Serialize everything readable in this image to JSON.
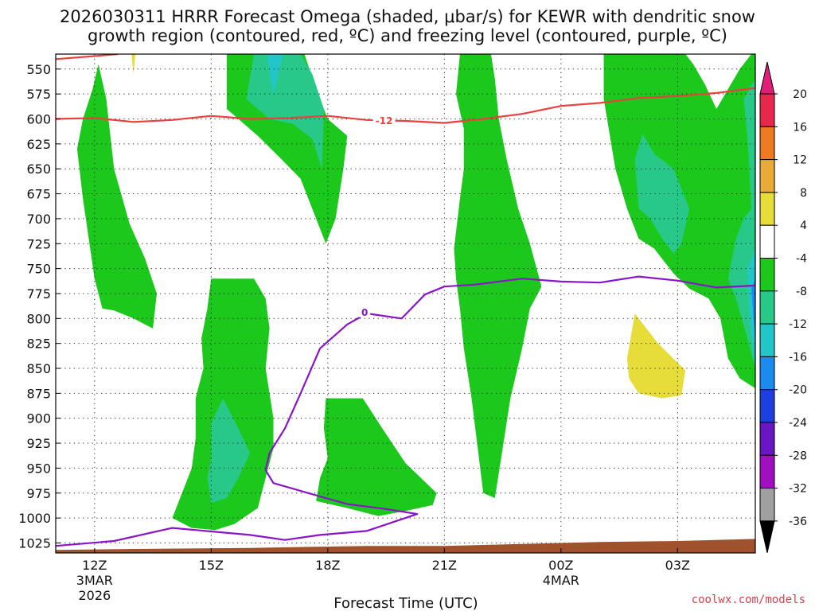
{
  "chart_data": {
    "type": "contour",
    "title_line1": "2026030311 HRRR Forecast Omega (shaded, μbar/s) for KEWR with dendritic snow",
    "title_line2": "growth region (contoured, red, ºC) and freezing level (contoured, purple, ºC)",
    "xlabel": "Forecast Time (UTC)",
    "ylabel": "",
    "credit": "coolwx.com/models",
    "x_range_hours": [
      11,
      29
    ],
    "y_range_hpa": [
      535,
      1035
    ],
    "y_ticks": [
      550,
      575,
      600,
      625,
      650,
      675,
      700,
      725,
      750,
      775,
      800,
      825,
      850,
      875,
      900,
      925,
      950,
      975,
      1000,
      1025
    ],
    "x_ticks": [
      {
        "hour": 12,
        "label": "12Z",
        "sub1": "3MAR",
        "sub2": "2026"
      },
      {
        "hour": 15,
        "label": "15Z",
        "sub1": "",
        "sub2": ""
      },
      {
        "hour": 18,
        "label": "18Z",
        "sub1": "",
        "sub2": ""
      },
      {
        "hour": 21,
        "label": "21Z",
        "sub1": "",
        "sub2": ""
      },
      {
        "hour": 24,
        "label": "00Z",
        "sub1": "4MAR",
        "sub2": ""
      },
      {
        "hour": 27,
        "label": "03Z",
        "sub1": "",
        "sub2": ""
      }
    ],
    "colorbar": {
      "levels": [
        "20",
        "16",
        "12",
        "8",
        "4",
        "-4",
        "-8",
        "-12",
        "-16",
        "-20",
        "-24",
        "-28",
        "-32",
        "-36"
      ],
      "colors": [
        "#e8284a",
        "#ee7a22",
        "#e8aa38",
        "#e6dc3a",
        "#ffffff",
        "#1bc81b",
        "#27c888",
        "#22c6c8",
        "#1a8cf0",
        "#1d3fe0",
        "#6a16c4",
        "#a010c0",
        "#a0a0a0"
      ],
      "top_color": "#e01e78",
      "bottom_color": "#000000"
    },
    "contour_lines": [
      {
        "name": "dgz-minus12",
        "label": "-12",
        "color": "#ea4040",
        "points": [
          [
            11,
            600
          ],
          [
            12,
            599
          ],
          [
            13,
            603
          ],
          [
            14,
            601
          ],
          [
            15,
            597
          ],
          [
            16,
            600
          ],
          [
            17,
            599
          ],
          [
            18,
            597
          ],
          [
            19,
            601
          ],
          [
            20,
            602
          ],
          [
            21,
            604
          ],
          [
            22,
            600
          ],
          [
            23,
            595
          ],
          [
            24,
            587
          ],
          [
            25,
            584
          ],
          [
            26,
            579
          ],
          [
            27,
            577
          ],
          [
            28,
            574
          ],
          [
            29,
            569
          ]
        ]
      },
      {
        "name": "dgz-minus12-topleft",
        "label": "",
        "color": "#ea4040",
        "points": [
          [
            11,
            540
          ],
          [
            12,
            537
          ],
          [
            12.6,
            535
          ]
        ]
      },
      {
        "name": "freezing-level-0",
        "label": "0",
        "color": "#8a14c8",
        "points": [
          [
            11,
            1028
          ],
          [
            12.5,
            1023
          ],
          [
            14,
            1010
          ],
          [
            16,
            1017
          ],
          [
            16.9,
            1022
          ],
          [
            17.8,
            1017
          ],
          [
            19,
            1013
          ],
          [
            20.3,
            996
          ],
          [
            19.5,
            991
          ],
          [
            18.5,
            986
          ],
          [
            17.5,
            975
          ],
          [
            16.6,
            965
          ],
          [
            16.4,
            952
          ],
          [
            16.5,
            935
          ],
          [
            16.9,
            910
          ],
          [
            17.3,
            875
          ],
          [
            17.8,
            830
          ],
          [
            18.5,
            806
          ],
          [
            19.0,
            795
          ],
          [
            19.9,
            800
          ],
          [
            20.5,
            776
          ],
          [
            21,
            768
          ],
          [
            21.8,
            766
          ],
          [
            23,
            760
          ],
          [
            24,
            763
          ],
          [
            25,
            764
          ],
          [
            26,
            758
          ],
          [
            27,
            762
          ],
          [
            28,
            769
          ],
          [
            29,
            767
          ]
        ]
      }
    ],
    "shaded_regions": [
      {
        "name": "omega-yellow-top",
        "value_range": "4 to 8",
        "color": "#e6dc3a",
        "points": [
          [
            12.95,
            535
          ],
          [
            13.05,
            535
          ],
          [
            13.0,
            555
          ]
        ]
      },
      {
        "name": "omega-green-left",
        "value_range": "-4 to -8",
        "color": "#1bc81b",
        "points": [
          [
            11.95,
            570
          ],
          [
            12.1,
            545
          ],
          [
            12.3,
            580
          ],
          [
            12.5,
            650
          ],
          [
            12.9,
            705
          ],
          [
            13.3,
            740
          ],
          [
            13.6,
            775
          ],
          [
            13.5,
            810
          ],
          [
            13.0,
            800
          ],
          [
            12.5,
            792
          ],
          [
            12.2,
            790
          ],
          [
            12.0,
            760
          ],
          [
            11.7,
            680
          ],
          [
            11.55,
            630
          ],
          [
            11.7,
            600
          ]
        ]
      },
      {
        "name": "omega-green-15z-upper",
        "value_range": "-4 to -8",
        "color": "#1bc81b",
        "points": [
          [
            15.4,
            535
          ],
          [
            16.3,
            535
          ],
          [
            16.8,
            553
          ],
          [
            17.1,
            535
          ],
          [
            17.4,
            535
          ],
          [
            17.7,
            570
          ],
          [
            18.0,
            600
          ],
          [
            18.5,
            617
          ],
          [
            18.4,
            650
          ],
          [
            18.2,
            700
          ],
          [
            17.95,
            725
          ],
          [
            17.6,
            690
          ],
          [
            17.3,
            660
          ],
          [
            16.8,
            640
          ],
          [
            16.2,
            617
          ],
          [
            15.7,
            600
          ],
          [
            15.4,
            590
          ]
        ]
      },
      {
        "name": "omega-teal-15z-upper",
        "value_range": "-8 to -12",
        "color": "#27c888",
        "points": [
          [
            15.9,
            580
          ],
          [
            16.1,
            535
          ],
          [
            17.3,
            535
          ],
          [
            17.6,
            555
          ],
          [
            17.9,
            590
          ],
          [
            17.85,
            650
          ],
          [
            17.6,
            620
          ],
          [
            17.1,
            605
          ],
          [
            16.5,
            600
          ]
        ]
      },
      {
        "name": "omega-cyan-15z-upper",
        "value_range": "-12 to -16",
        "color": "#22c6c8",
        "points": [
          [
            16.45,
            535
          ],
          [
            16.85,
            535
          ],
          [
            16.6,
            575
          ],
          [
            16.5,
            555
          ]
        ]
      },
      {
        "name": "omega-green-21z",
        "value_range": "-4 to -8",
        "color": "#1bc81b",
        "points": [
          [
            21.4,
            535
          ],
          [
            22.2,
            535
          ],
          [
            22.3,
            560
          ],
          [
            22.4,
            600
          ],
          [
            22.6,
            640
          ],
          [
            22.9,
            690
          ],
          [
            23.2,
            725
          ],
          [
            23.5,
            768
          ],
          [
            23.2,
            790
          ],
          [
            23.0,
            830
          ],
          [
            22.7,
            880
          ],
          [
            22.5,
            930
          ],
          [
            22.3,
            980
          ],
          [
            22.0,
            975
          ],
          [
            21.7,
            880
          ],
          [
            21.5,
            830
          ],
          [
            21.4,
            790
          ],
          [
            21.3,
            760
          ],
          [
            21.25,
            730
          ],
          [
            21.4,
            680
          ],
          [
            21.5,
            650
          ],
          [
            21.5,
            610
          ],
          [
            21.3,
            575
          ]
        ]
      },
      {
        "name": "omega-green-right",
        "value_range": "-4 to -8",
        "color": "#1bc81b",
        "points": [
          [
            25.1,
            535
          ],
          [
            27.2,
            535
          ],
          [
            27.4,
            545
          ],
          [
            27.7,
            565
          ],
          [
            28.0,
            590
          ],
          [
            28.3,
            570
          ],
          [
            28.6,
            550
          ],
          [
            28.9,
            535
          ],
          [
            29.0,
            535
          ],
          [
            29.0,
            870
          ],
          [
            28.6,
            860
          ],
          [
            28.3,
            840
          ],
          [
            28.1,
            800
          ],
          [
            27.8,
            780
          ],
          [
            27.3,
            770
          ],
          [
            26.9,
            755
          ],
          [
            26.4,
            730
          ],
          [
            26.0,
            720
          ],
          [
            25.7,
            690
          ],
          [
            25.4,
            650
          ],
          [
            25.1,
            580
          ]
        ]
      },
      {
        "name": "omega-teal-right-mid",
        "value_range": "-8 to -12",
        "color": "#27c888",
        "points": [
          [
            25.9,
            640
          ],
          [
            26.1,
            615
          ],
          [
            26.4,
            635
          ],
          [
            26.9,
            650
          ],
          [
            27.3,
            690
          ],
          [
            27.1,
            725
          ],
          [
            26.9,
            735
          ],
          [
            26.6,
            720
          ],
          [
            26.3,
            700
          ],
          [
            26.0,
            690
          ]
        ]
      },
      {
        "name": "omega-teal-right-edge",
        "value_range": "-8 to -12",
        "color": "#27c888",
        "points": [
          [
            28.7,
            580
          ],
          [
            29.0,
            560
          ],
          [
            29.0,
            850
          ],
          [
            28.8,
            820
          ],
          [
            28.5,
            780
          ],
          [
            28.3,
            760
          ],
          [
            28.5,
            720
          ],
          [
            28.7,
            700
          ],
          [
            28.9,
            690
          ],
          [
            28.8,
            620
          ]
        ]
      },
      {
        "name": "omega-cyan-right-edge",
        "value_range": "-12 to -16",
        "color": "#22c6c8",
        "points": [
          [
            28.8,
            750
          ],
          [
            29.0,
            730
          ],
          [
            29.0,
            850
          ],
          [
            28.85,
            800
          ]
        ]
      },
      {
        "name": "omega-blue-right-edge",
        "value_range": "-16 to -20",
        "color": "#1a8cf0",
        "points": [
          [
            28.9,
            770
          ],
          [
            29.0,
            760
          ],
          [
            29.0,
            820
          ],
          [
            28.95,
            800
          ]
        ]
      },
      {
        "name": "omega-green-15z-lower",
        "value_range": "-4 to -8",
        "color": "#1bc81b",
        "points": [
          [
            15.0,
            760
          ],
          [
            16.1,
            760
          ],
          [
            16.4,
            780
          ],
          [
            16.5,
            810
          ],
          [
            16.4,
            850
          ],
          [
            16.6,
            900
          ],
          [
            16.6,
            930
          ],
          [
            16.4,
            960
          ],
          [
            16.2,
            990
          ],
          [
            15.6,
            1006
          ],
          [
            15.1,
            1012
          ],
          [
            14.5,
            1010
          ],
          [
            14.0,
            1000
          ],
          [
            14.2,
            980
          ],
          [
            14.5,
            950
          ],
          [
            14.6,
            920
          ],
          [
            14.6,
            880
          ],
          [
            14.8,
            850
          ],
          [
            14.75,
            820
          ],
          [
            14.9,
            790
          ]
        ]
      },
      {
        "name": "omega-teal-15z-lower",
        "value_range": "-8 to -12",
        "color": "#27c888",
        "points": [
          [
            15.0,
            905
          ],
          [
            15.3,
            880
          ],
          [
            15.7,
            910
          ],
          [
            16.0,
            935
          ],
          [
            15.7,
            960
          ],
          [
            15.4,
            980
          ],
          [
            15.0,
            985
          ],
          [
            14.9,
            960
          ],
          [
            15.0,
            940
          ]
        ]
      },
      {
        "name": "omega-green-18z-lower",
        "value_range": "-4 to -8",
        "color": "#1bc81b",
        "points": [
          [
            17.95,
            880
          ],
          [
            18.9,
            880
          ],
          [
            19.4,
            910
          ],
          [
            20.0,
            945
          ],
          [
            20.8,
            975
          ],
          [
            20.7,
            987
          ],
          [
            20.0,
            993
          ],
          [
            19.3,
            998
          ],
          [
            18.5,
            990
          ],
          [
            17.7,
            983
          ],
          [
            17.8,
            960
          ],
          [
            18.0,
            940
          ],
          [
            17.9,
            910
          ]
        ]
      },
      {
        "name": "omega-yellow-right",
        "value_range": "4 to 8",
        "color": "#e6dc3a",
        "points": [
          [
            25.7,
            840
          ],
          [
            25.9,
            795
          ],
          [
            26.5,
            825
          ],
          [
            27.2,
            852
          ],
          [
            27.1,
            877
          ],
          [
            26.6,
            880
          ],
          [
            26.0,
            875
          ],
          [
            25.75,
            860
          ]
        ]
      }
    ],
    "terrain": {
      "name": "ground",
      "color": "#a0522d",
      "points": [
        [
          11,
          1032
        ],
        [
          13,
          1031
        ],
        [
          16,
          1030
        ],
        [
          19,
          1028
        ],
        [
          21,
          1028
        ],
        [
          23,
          1026
        ],
        [
          25,
          1024
        ],
        [
          27,
          1023
        ],
        [
          29,
          1021
        ]
      ]
    }
  }
}
